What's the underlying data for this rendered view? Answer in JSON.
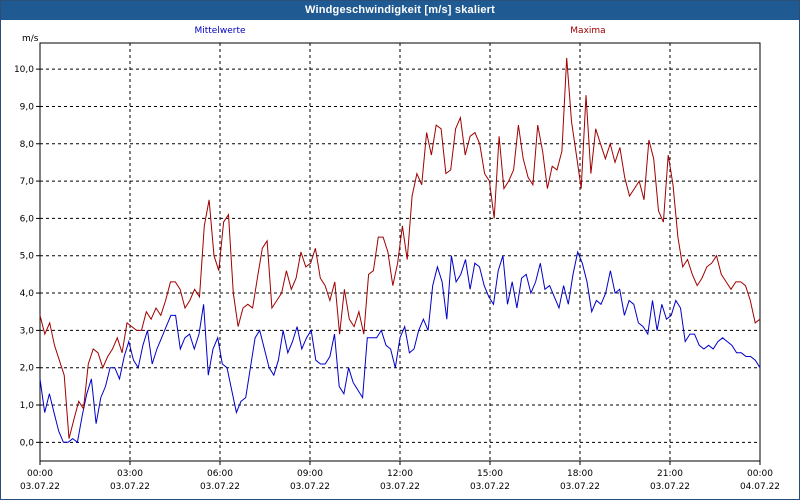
{
  "window": {
    "title": "Windgeschwindigkeit [m/s] skaliert"
  },
  "chart_data": {
    "type": "line",
    "ylabel": "m/s",
    "ylim": [
      -0.5,
      10.7
    ],
    "yticks": [
      "0,0",
      "1,0",
      "2,0",
      "3,0",
      "4,0",
      "5,0",
      "6,0",
      "7,0",
      "8,0",
      "9,0",
      "10,0"
    ],
    "xlim": [
      0,
      24
    ],
    "xticks": [
      {
        "time": "00:00",
        "date": "03.07.22"
      },
      {
        "time": "03:00",
        "date": "03.07.22"
      },
      {
        "time": "06:00",
        "date": "03.07.22"
      },
      {
        "time": "09:00",
        "date": "03.07.22"
      },
      {
        "time": "12:00",
        "date": "03.07.22"
      },
      {
        "time": "15:00",
        "date": "03.07.22"
      },
      {
        "time": "18:00",
        "date": "03.07.22"
      },
      {
        "time": "21:00",
        "date": "03.07.22"
      },
      {
        "time": "00:00",
        "date": "04.07.22"
      }
    ],
    "grid": true,
    "colors": {
      "mean": "#0000c8",
      "max": "#a00000"
    },
    "series": [
      {
        "name": "Mittelwerte",
        "values": [
          1.7,
          0.8,
          1.3,
          0.8,
          0.3,
          0.0,
          0.0,
          0.1,
          0.0,
          0.7,
          1.3,
          1.7,
          0.5,
          1.2,
          1.5,
          2.0,
          2.0,
          1.7,
          2.3,
          2.7,
          2.2,
          2.0,
          2.6,
          3.0,
          2.1,
          2.5,
          2.8,
          3.1,
          3.4,
          3.4,
          2.5,
          2.8,
          2.9,
          2.5,
          2.9,
          3.7,
          1.8,
          2.5,
          2.8,
          2.1,
          2.0,
          1.4,
          0.8,
          1.1,
          1.2,
          2.0,
          2.8,
          3.0,
          2.5,
          2.0,
          1.8,
          2.2,
          3.0,
          2.4,
          2.7,
          3.1,
          2.5,
          2.8,
          3.0,
          2.2,
          2.1,
          2.1,
          2.3,
          2.9,
          1.5,
          1.3,
          2.0,
          1.6,
          1.4,
          1.2,
          2.8,
          2.8,
          2.8,
          3.0,
          2.6,
          2.5,
          2.0,
          2.8,
          3.1,
          2.4,
          2.5,
          3.0,
          3.3,
          3.0,
          4.2,
          4.7,
          4.3,
          3.3,
          5.0,
          4.3,
          4.5,
          4.9,
          4.1,
          4.8,
          4.7,
          4.2,
          3.9,
          3.7,
          4.6,
          5.0,
          3.7,
          4.3,
          3.6,
          4.4,
          4.5,
          4.0,
          4.3,
          4.8,
          4.1,
          4.2,
          3.9,
          3.6,
          4.2,
          3.7,
          4.5,
          5.1,
          4.8,
          4.3,
          3.5,
          3.8,
          3.7,
          4.0,
          4.6,
          4.0,
          4.1,
          3.4,
          3.8,
          3.7,
          3.2,
          3.1,
          2.9,
          3.8,
          3.0,
          3.7,
          3.3,
          3.4,
          3.8,
          3.6,
          2.7,
          2.9,
          2.9,
          2.6,
          2.5,
          2.6,
          2.5,
          2.7,
          2.8,
          2.7,
          2.6,
          2.4,
          2.4,
          2.3,
          2.3,
          2.2,
          2.0
        ],
        "color": "#0000c8"
      },
      {
        "name": "Maxima",
        "values": [
          3.4,
          2.9,
          3.2,
          2.6,
          2.2,
          1.8,
          0.1,
          0.6,
          1.1,
          0.9,
          2.1,
          2.5,
          2.4,
          2.0,
          2.3,
          2.5,
          2.8,
          2.4,
          3.2,
          3.1,
          3.0,
          3.0,
          3.5,
          3.3,
          3.6,
          3.4,
          3.8,
          4.3,
          4.3,
          4.1,
          3.6,
          3.8,
          4.1,
          3.9,
          5.8,
          6.5,
          5.0,
          4.6,
          5.9,
          6.1,
          4.0,
          3.1,
          3.6,
          3.7,
          3.6,
          4.4,
          5.2,
          5.4,
          3.6,
          3.8,
          4.0,
          4.6,
          4.1,
          4.4,
          5.1,
          4.7,
          4.8,
          5.2,
          4.4,
          4.2,
          3.8,
          4.3,
          2.9,
          4.1,
          3.3,
          3.1,
          3.5,
          2.9,
          4.5,
          4.6,
          5.5,
          5.5,
          5.1,
          4.2,
          4.8,
          5.8,
          4.9,
          6.6,
          7.2,
          6.9,
          8.3,
          7.7,
          8.5,
          8.4,
          7.2,
          7.3,
          8.4,
          8.7,
          7.7,
          8.2,
          8.3,
          8.0,
          7.2,
          7.0,
          6.0,
          8.2,
          6.8,
          7.0,
          7.3,
          8.5,
          7.6,
          7.1,
          6.9,
          8.5,
          7.8,
          6.8,
          7.4,
          7.3,
          7.8,
          10.3,
          8.6,
          7.7,
          6.8,
          9.3,
          7.2,
          8.4,
          8.0,
          7.6,
          8.0,
          7.5,
          7.9,
          7.1,
          6.6,
          6.8,
          7.0,
          6.5,
          8.1,
          7.6,
          6.2,
          5.9,
          7.7,
          6.9,
          5.5,
          4.7,
          4.9,
          4.5,
          4.2,
          4.4,
          4.7,
          4.8,
          5.0,
          4.5,
          4.3,
          4.1,
          4.3,
          4.3,
          4.2,
          3.8,
          3.2,
          3.3
        ],
        "color": "#a00000"
      }
    ]
  }
}
